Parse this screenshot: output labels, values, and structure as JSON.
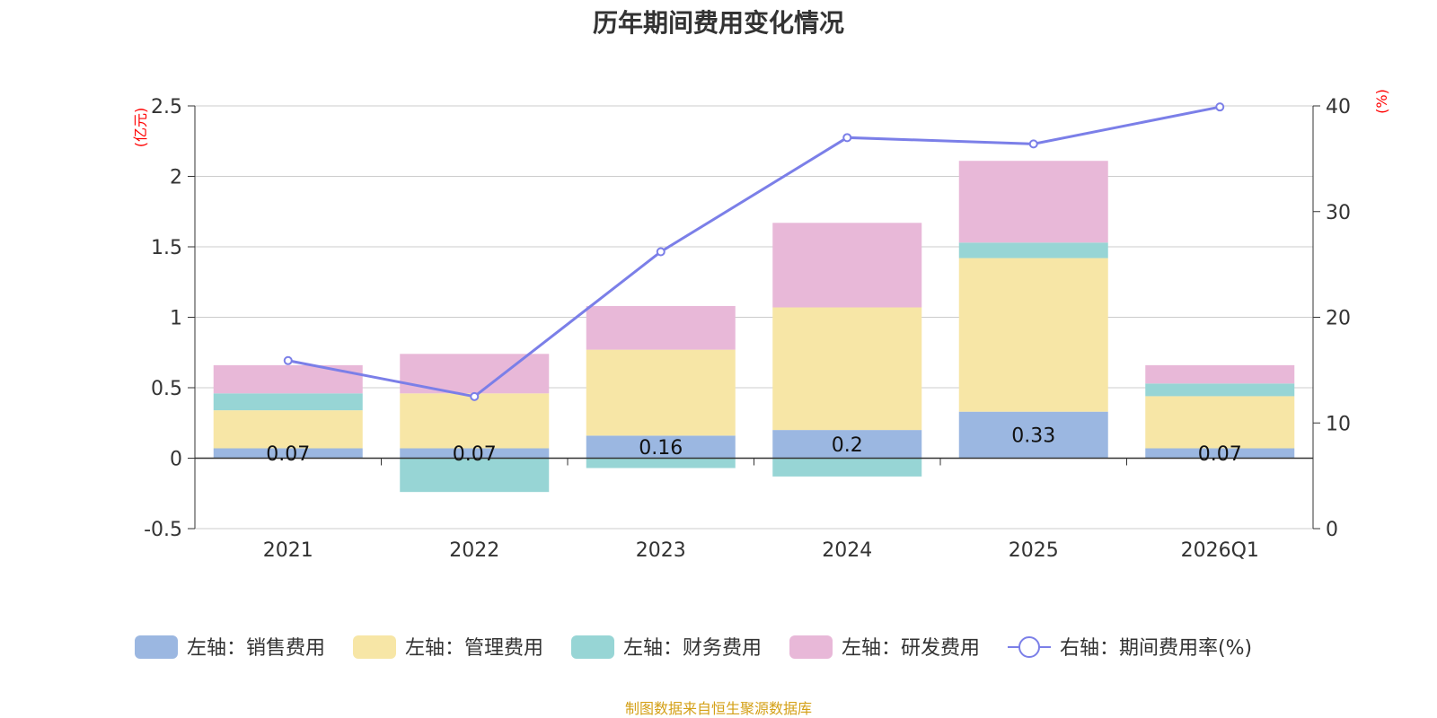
{
  "chart_data": {
    "type": "bar",
    "title": "历年期间费用变化情况",
    "categories": [
      "2021",
      "2022",
      "2023",
      "2024",
      "2025",
      "2026Q1"
    ],
    "left_axis": {
      "unit": "(亿元)",
      "ylim": [
        -0.5,
        2.5
      ],
      "ticks": [
        "-0.5",
        "0",
        "0.5",
        "1",
        "1.5",
        "2",
        "2.5"
      ]
    },
    "right_axis": {
      "unit": "(%)",
      "ylim": [
        0,
        40
      ],
      "ticks": [
        "0",
        "10",
        "20",
        "30",
        "40"
      ]
    },
    "series": [
      {
        "name": "左轴：销售费用",
        "color": "#9bb7e1",
        "values": [
          0.07,
          0.07,
          0.16,
          0.2,
          0.33,
          0.07
        ],
        "labels": [
          "0.07",
          "0.07",
          "0.16",
          "0.2",
          "0.33",
          "0.07"
        ]
      },
      {
        "name": "左轴：管理费用",
        "color": "#f7e6a6",
        "values": [
          0.27,
          0.39,
          0.61,
          0.87,
          1.09,
          0.37
        ]
      },
      {
        "name": "左轴：财务费用",
        "color": "#97d5d5",
        "values": [
          0.12,
          -0.24,
          -0.07,
          -0.13,
          0.11,
          0.09
        ]
      },
      {
        "name": "左轴：研发费用",
        "color": "#e8b8d8",
        "values": [
          0.2,
          0.28,
          0.31,
          0.6,
          0.58,
          0.13
        ]
      }
    ],
    "line": {
      "name": "右轴：期间费用率(%)",
      "color": "#7b7fe8",
      "values": [
        15.9,
        12.5,
        26.2,
        37.0,
        36.4,
        39.9
      ]
    },
    "legend_position": "bottom",
    "grid": true
  },
  "source": "制图数据来自恒生聚源数据库"
}
